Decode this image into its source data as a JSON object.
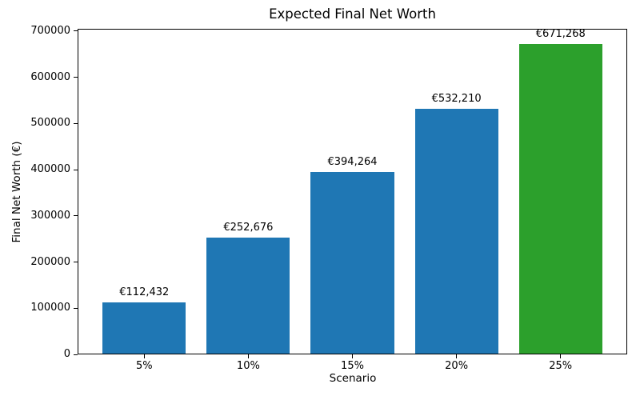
{
  "chart_data": {
    "type": "bar",
    "title": "Expected Final Net Worth",
    "xlabel": "Scenario",
    "ylabel": "Final Net Worth (€)",
    "categories": [
      "5%",
      "10%",
      "15%",
      "20%",
      "25%"
    ],
    "values": [
      112432,
      252676,
      394264,
      532210,
      671268
    ],
    "bar_labels": [
      "€112,432",
      "€252,676",
      "€394,264",
      "€532,210",
      "€671,268"
    ],
    "bar_colors": [
      "#1f77b4",
      "#1f77b4",
      "#1f77b4",
      "#1f77b4",
      "#2ca02c"
    ],
    "bar_width_data_units": 0.8,
    "ylim": [
      0,
      704831
    ],
    "yticks": [
      0,
      100000,
      200000,
      300000,
      400000,
      500000,
      600000,
      700000
    ],
    "ytick_labels": [
      "0",
      "100000",
      "200000",
      "300000",
      "400000",
      "500000",
      "600000",
      "700000"
    ],
    "xlim": [
      -0.64,
      4.64
    ],
    "grid": false,
    "legend": null,
    "spine_color": "#000000",
    "background_color": "#ffffff"
  }
}
